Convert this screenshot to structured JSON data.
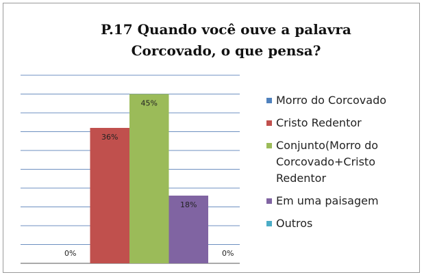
{
  "chart_data": {
    "type": "bar",
    "title": "P.17 Quando você ouve a palavra Corcovado, o que pensa?",
    "series": [
      {
        "name": "Morro do Corcovado",
        "color": "#4f81bd",
        "values": [
          0
        ],
        "value_labels": [
          "0%"
        ]
      },
      {
        "name": "Cristo Redentor",
        "color": "#c0504d",
        "values": [
          36
        ],
        "value_labels": [
          "36%"
        ]
      },
      {
        "name": "Conjunto(Morro do Corcovado+Cristo Redentor",
        "color": "#9bbb59",
        "values": [
          45
        ],
        "value_labels": [
          "45%"
        ]
      },
      {
        "name": "Em uma paisagem",
        "color": "#8064a2",
        "values": [
          18
        ],
        "value_labels": [
          "18%"
        ]
      },
      {
        "name": "Outros",
        "color": "#4bacc6",
        "values": [
          0
        ],
        "value_labels": [
          "0%"
        ]
      }
    ],
    "ylim": [
      0,
      50
    ],
    "yticks": [
      0,
      5,
      10,
      15,
      20,
      25,
      30,
      35,
      40,
      45,
      50
    ],
    "grid": true,
    "legend": "right"
  }
}
